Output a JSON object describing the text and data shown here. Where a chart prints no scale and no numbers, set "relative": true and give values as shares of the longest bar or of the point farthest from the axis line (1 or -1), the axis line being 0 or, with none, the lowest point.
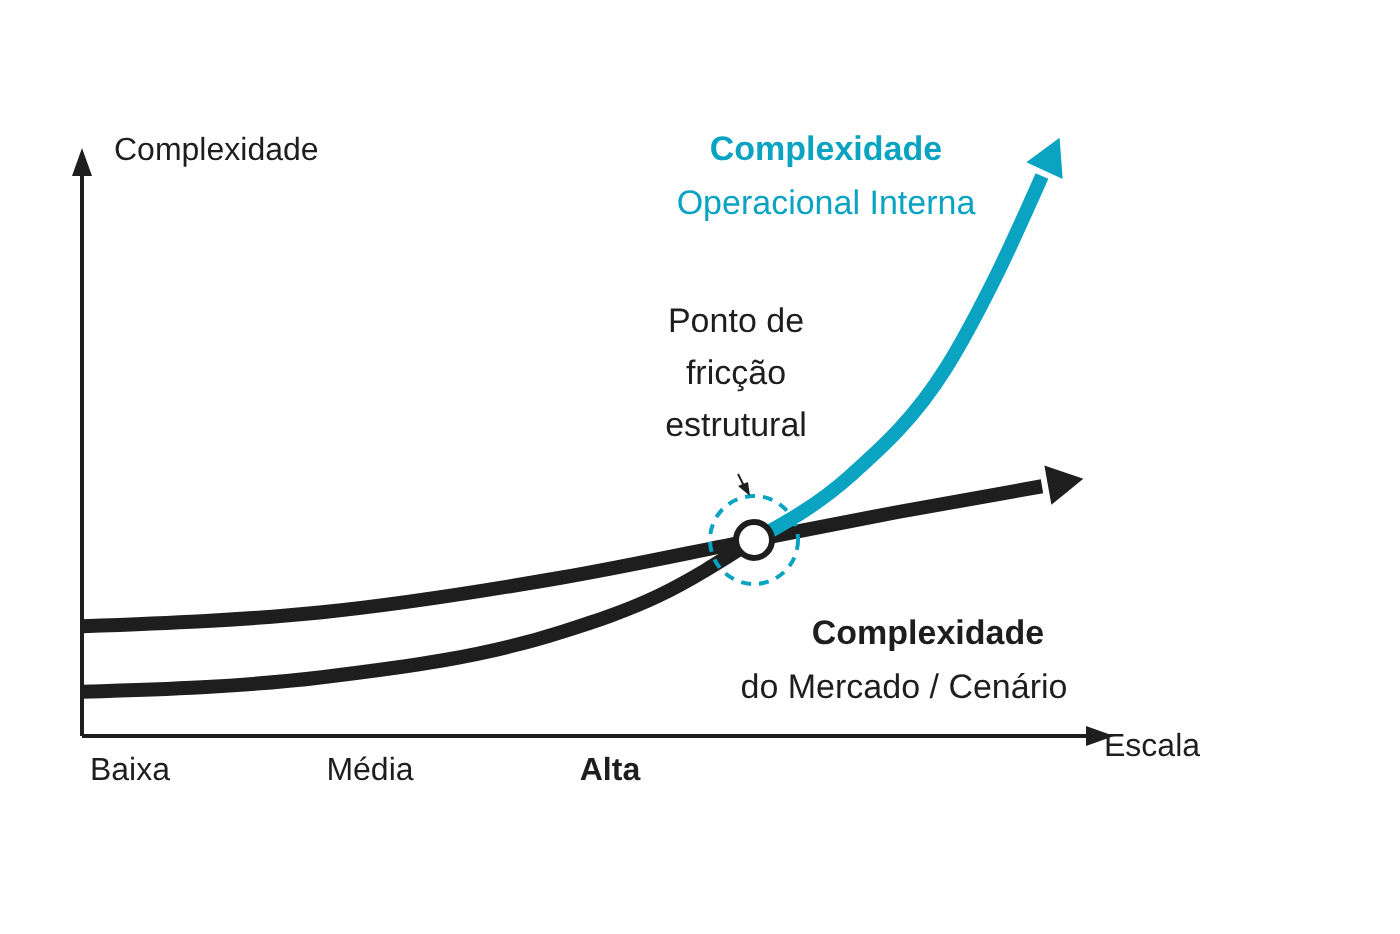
{
  "chart_data": {
    "type": "line",
    "relative": true,
    "xlabel": "Escala",
    "ylabel": "Complexidade",
    "tick_labels": "x",
    "legend": "right",
    "marker": "none",
    "line_style": "solid",
    "categories": [
      null,
      "Baixa",
      null,
      null,
      null,
      null,
      "Média",
      null,
      null,
      null,
      null,
      "Alta",
      null,
      null,
      null,
      null,
      null,
      null,
      null,
      null,
      null
    ],
    "series": [
      {
        "name": "Complexidade do Mercado / Cenário",
        "color": "#1e1e1e",
        "values": [
          0.196,
          null,
          null,
          null,
          null,
          0.221,
          null,
          null,
          null,
          null,
          0.283,
          null,
          null,
          null,
          0.35,
          null,
          null,
          0.4,
          null,
          null,
          0.446
        ]
      },
      {
        "color": "#1e1e1e",
        "values": [
          0.079,
          null,
          null,
          null,
          null,
          0.105,
          null,
          null,
          null,
          null,
          0.186,
          null,
          0.25,
          null,
          0.35,
          null,
          null,
          null,
          null,
          null,
          null
        ]
      },
      {
        "name": "Complexidade Operacional Interna",
        "color": "#0aa3c2",
        "values": [
          null,
          null,
          null,
          null,
          null,
          null,
          null,
          null,
          null,
          null,
          null,
          null,
          null,
          null,
          0.35,
          null,
          0.464,
          null,
          0.657,
          0.814,
          1
        ]
      }
    ],
    "annotations": [
      "Ponto de fricção estrutural"
    ]
  }
}
